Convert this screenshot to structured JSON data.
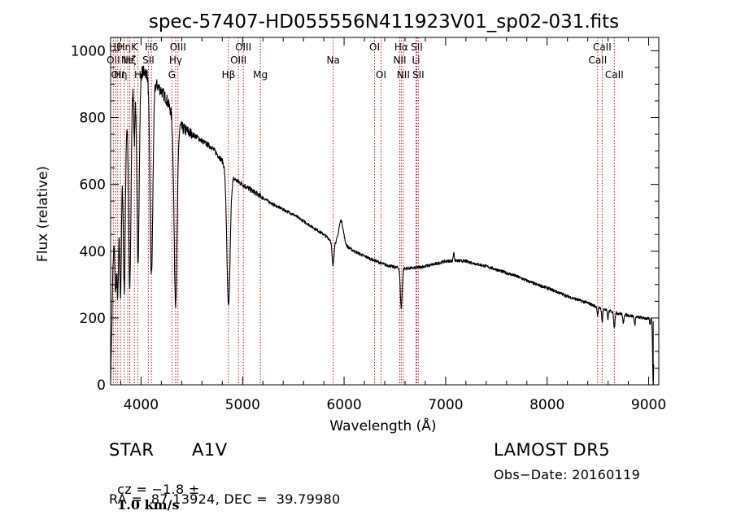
{
  "chart_data": {
    "type": "line",
    "title": "spec-57407-HD055556N411923V01_sp02-031.fits",
    "xlabel": "Wavelength (Å)",
    "ylabel": "Flux (relative)",
    "xlim": [
      3700,
      9100
    ],
    "ylim": [
      0,
      1040
    ],
    "x_ticks": [
      4000,
      5000,
      6000,
      7000,
      8000,
      9000
    ],
    "y_ticks": [
      0,
      200,
      400,
      600,
      800,
      1000
    ],
    "grid": false,
    "line_color": "#000000",
    "marker_color": "#b22222",
    "continuum": [
      [
        3700,
        0
      ],
      [
        3710,
        150
      ],
      [
        3720,
        320
      ],
      [
        3735,
        450
      ],
      [
        3760,
        560
      ],
      [
        3800,
        680
      ],
      [
        3850,
        790
      ],
      [
        3900,
        860
      ],
      [
        3950,
        930
      ],
      [
        4000,
        940
      ],
      [
        4050,
        935
      ],
      [
        4100,
        920
      ],
      [
        4150,
        900
      ],
      [
        4200,
        880
      ],
      [
        4250,
        855
      ],
      [
        4300,
        815
      ],
      [
        4350,
        790
      ],
      [
        4400,
        770
      ],
      [
        4450,
        760
      ],
      [
        4500,
        750
      ],
      [
        4550,
        742
      ],
      [
        4600,
        730
      ],
      [
        4650,
        720
      ],
      [
        4700,
        710
      ],
      [
        4750,
        690
      ],
      [
        4800,
        670
      ],
      [
        4850,
        640
      ],
      [
        4900,
        620
      ],
      [
        4950,
        610
      ],
      [
        5000,
        600
      ],
      [
        5100,
        580
      ],
      [
        5200,
        560
      ],
      [
        5300,
        540
      ],
      [
        5400,
        525
      ],
      [
        5500,
        510
      ],
      [
        5600,
        490
      ],
      [
        5700,
        470
      ],
      [
        5800,
        450
      ],
      [
        5900,
        425
      ],
      [
        6000,
        420
      ],
      [
        6100,
        400
      ],
      [
        6200,
        385
      ],
      [
        6300,
        372
      ],
      [
        6400,
        360
      ],
      [
        6500,
        352
      ],
      [
        6600,
        348
      ],
      [
        6700,
        350
      ],
      [
        6800,
        355
      ],
      [
        6900,
        362
      ],
      [
        7000,
        370
      ],
      [
        7100,
        372
      ],
      [
        7200,
        370
      ],
      [
        7300,
        362
      ],
      [
        7400,
        355
      ],
      [
        7500,
        345
      ],
      [
        7600,
        335
      ],
      [
        7700,
        325
      ],
      [
        7800,
        312
      ],
      [
        7900,
        300
      ],
      [
        8000,
        290
      ],
      [
        8100,
        278
      ],
      [
        8200,
        265
      ],
      [
        8300,
        255
      ],
      [
        8400,
        245
      ],
      [
        8500,
        232
      ],
      [
        8600,
        222
      ],
      [
        8700,
        214
      ],
      [
        8800,
        208
      ],
      [
        8900,
        202
      ],
      [
        9000,
        198
      ],
      [
        9050,
        205
      ]
    ],
    "features": [
      {
        "center": 3750,
        "width": 8,
        "depth": 230
      },
      {
        "center": 3771,
        "width": 8,
        "depth": 320
      },
      {
        "center": 3798,
        "width": 9,
        "depth": 400
      },
      {
        "center": 3835,
        "width": 10,
        "depth": 470
      },
      {
        "center": 3889,
        "width": 11,
        "depth": 560
      },
      {
        "center": 3934,
        "width": 5,
        "depth": 180
      },
      {
        "center": 3970,
        "width": 12,
        "depth": 560
      },
      {
        "center": 4102,
        "width": 14,
        "depth": 590
      },
      {
        "center": 4340,
        "width": 15,
        "depth": 545
      },
      {
        "center": 4861,
        "width": 16,
        "depth": 400
      },
      {
        "center": 5890,
        "width": 9,
        "depth": 70
      },
      {
        "center": 5970,
        "width": 22,
        "depth": -70
      },
      {
        "center": 6563,
        "width": 9,
        "depth": 120
      },
      {
        "center": 7080,
        "width": 5,
        "depth": -25
      },
      {
        "center": 8498,
        "width": 5,
        "depth": 25
      },
      {
        "center": 8542,
        "width": 5,
        "depth": 40
      },
      {
        "center": 8598,
        "width": 5,
        "depth": 25
      },
      {
        "center": 8662,
        "width": 6,
        "depth": 45
      },
      {
        "center": 8750,
        "width": 5,
        "depth": 30
      },
      {
        "center": 8863,
        "width": 5,
        "depth": 25
      },
      {
        "center": 9014,
        "width": 5,
        "depth": 20
      },
      {
        "center": 9045,
        "width": 6,
        "depth": 200
      }
    ],
    "line_markers": [
      {
        "wl": 3727,
        "label": "OII",
        "row": 1
      },
      {
        "wl": 3750,
        "label": "Hθ",
        "row": 0
      },
      {
        "wl": 3770,
        "label": "OII",
        "row": 2
      },
      {
        "wl": 3798,
        "label": "Hη",
        "row": 2
      },
      {
        "wl": 3835,
        "label": "Hη",
        "row": 0
      },
      {
        "wl": 3869,
        "label": "Ne",
        "row": 1
      },
      {
        "wl": 3889,
        "label": "Hζ",
        "row": 1
      },
      {
        "wl": 3934,
        "label": "K",
        "row": 0
      },
      {
        "wl": 3969,
        "label": "H",
        "row": 2
      },
      {
        "wl": 4072,
        "label": "SII",
        "row": 1
      },
      {
        "wl": 4102,
        "label": "Hδ",
        "row": 0
      },
      {
        "wl": 4304,
        "label": "G",
        "row": 2
      },
      {
        "wl": 4340,
        "label": "Hγ",
        "row": 1
      },
      {
        "wl": 4363,
        "label": "OIII",
        "row": 0
      },
      {
        "wl": 4861,
        "label": "Hβ",
        "row": 2
      },
      {
        "wl": 4959,
        "label": "OIII",
        "row": 1
      },
      {
        "wl": 5007,
        "label": "OIII",
        "row": 0
      },
      {
        "wl": 5175,
        "label": "Mg",
        "row": 2
      },
      {
        "wl": 5893,
        "label": "Na",
        "row": 1
      },
      {
        "wl": 6300,
        "label": "OI",
        "row": 0
      },
      {
        "wl": 6364,
        "label": "OI",
        "row": 2
      },
      {
        "wl": 6548,
        "label": "NII",
        "row": 1
      },
      {
        "wl": 6563,
        "label": "Hα",
        "row": 0
      },
      {
        "wl": 6583,
        "label": "NII",
        "row": 2
      },
      {
        "wl": 6708,
        "label": "Li",
        "row": 1
      },
      {
        "wl": 6716,
        "label": "SII",
        "row": 0
      },
      {
        "wl": 6731,
        "label": "SII",
        "row": 2
      },
      {
        "wl": 8498,
        "label": "CaII",
        "row": 1
      },
      {
        "wl": 8542,
        "label": "CaII",
        "row": 0
      },
      {
        "wl": 8662,
        "label": "CaII",
        "row": 2
      }
    ]
  },
  "info": {
    "class_label": "STAR",
    "subclass": "A1V",
    "survey": "LAMOST DR5",
    "cz_prefix": "cz = −1.8 ±",
    "cz_value": "1.0 km/s",
    "obs_date": "Obs−Date: 20160119",
    "coords": "RA =  87.13924, DEC =  39.79980"
  }
}
